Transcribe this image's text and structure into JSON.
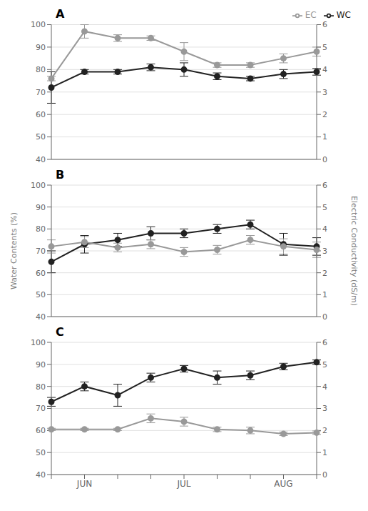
{
  "chart_data": [
    {
      "type": "line",
      "title": "A",
      "categories": [
        null,
        "JUN",
        null,
        null,
        "JUL",
        null,
        null,
        "AUG",
        null
      ],
      "tick_labels": "y",
      "series": [
        {
          "name": "WC",
          "color": "#222222",
          "marker": "o",
          "line_style": "solid",
          "values": [
            72,
            79,
            79,
            81,
            80,
            77,
            76,
            78,
            79
          ],
          "errors": [
            7,
            1,
            1,
            1.5,
            3,
            1.5,
            1,
            2,
            1.5
          ]
        },
        {
          "name": "EC",
          "color": "#999999",
          "marker": "o",
          "line_style": "solid",
          "axis": "y2",
          "values": [
            3.6,
            5.7,
            5.4,
            5.4,
            4.8,
            4.2,
            4.2,
            4.5,
            4.8
          ],
          "errors": [
            0.1,
            0.3,
            0.15,
            0.1,
            0.4,
            0.1,
            0.1,
            0.2,
            0.2
          ]
        }
      ],
      "ylim": [
        40,
        100
      ],
      "yticks": [
        40,
        50,
        60,
        70,
        80,
        90,
        100
      ],
      "y2lim": [
        0,
        6
      ],
      "y2ticks": [
        0,
        1,
        2,
        3,
        4,
        5,
        6
      ],
      "grid": true,
      "legend": "upper right"
    },
    {
      "type": "line",
      "title": "B",
      "categories": [
        null,
        "JUN",
        null,
        null,
        "JUL",
        null,
        null,
        "AUG",
        null
      ],
      "tick_labels": "y",
      "ylabel": "Water Contents (%)",
      "y2label": "Electric Conductivity (dS/m)",
      "series": [
        {
          "name": "WC",
          "color": "#222222",
          "marker": "o",
          "line_style": "solid",
          "values": [
            65,
            73,
            75,
            78,
            78,
            80,
            82,
            73,
            72
          ],
          "errors": [
            5,
            4,
            3,
            3,
            2,
            2,
            2,
            5,
            4
          ]
        },
        {
          "name": "EC",
          "color": "#999999",
          "marker": "o",
          "line_style": "solid",
          "axis": "y2",
          "values": [
            3.2,
            3.4,
            3.15,
            3.3,
            2.95,
            3.05,
            3.5,
            3.2,
            3.05
          ],
          "errors": [
            0.3,
            0.25,
            0.2,
            0.2,
            0.2,
            0.2,
            0.2,
            0.35,
            0.35
          ]
        }
      ],
      "ylim": [
        40,
        100
      ],
      "yticks": [
        40,
        50,
        60,
        70,
        80,
        90,
        100
      ],
      "y2lim": [
        0,
        6
      ],
      "y2ticks": [
        0,
        1,
        2,
        3,
        4,
        5,
        6
      ],
      "grid": true
    },
    {
      "type": "line",
      "title": "C",
      "categories": [
        null,
        "JUN",
        null,
        null,
        "JUL",
        null,
        null,
        "AUG",
        null
      ],
      "series": [
        {
          "name": "WC",
          "color": "#222222",
          "marker": "o",
          "line_style": "solid",
          "values": [
            73,
            80,
            76,
            84,
            88,
            84,
            85,
            89,
            91
          ],
          "errors": [
            2,
            2,
            5,
            2,
            1.5,
            3,
            2,
            1.5,
            1
          ]
        },
        {
          "name": "EC",
          "color": "#999999",
          "marker": "o",
          "line_style": "solid",
          "axis": "y2",
          "values": [
            2.05,
            2.05,
            2.05,
            2.55,
            2.4,
            2.05,
            2.0,
            1.85,
            1.9
          ],
          "errors": [
            0.05,
            0.05,
            0.05,
            0.2,
            0.2,
            0.1,
            0.15,
            0.08,
            0.08
          ]
        }
      ],
      "ylim": [
        40,
        100
      ],
      "yticks": [
        40,
        50,
        60,
        70,
        80,
        90,
        100
      ],
      "y2lim": [
        0,
        6
      ],
      "y2ticks": [
        0,
        1,
        2,
        3,
        4,
        5,
        6
      ],
      "grid": true
    }
  ]
}
